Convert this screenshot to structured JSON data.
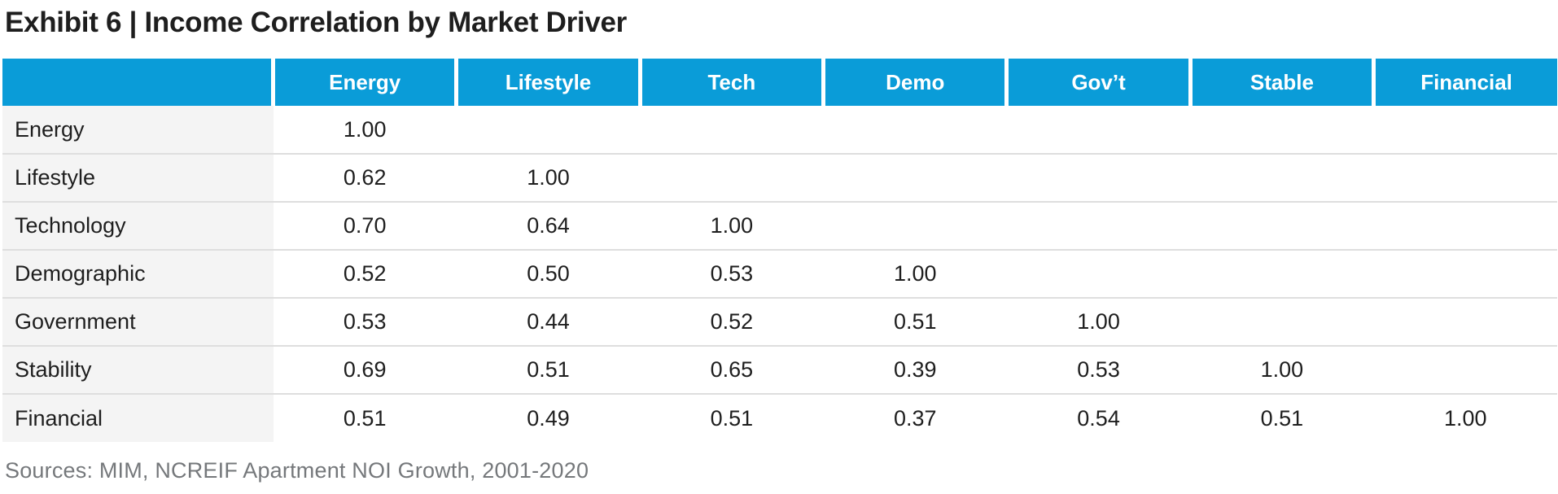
{
  "title": "Exhibit 6 | Income Correlation by Market Driver",
  "source_note": "Sources: MIM, NCREIF Apartment NOI Growth, 2001-2020",
  "colors": {
    "header_bg": "#0a9cd8",
    "header_text": "#ffffff",
    "row_label_bg": "#f4f4f4",
    "row_divider": "#dedede",
    "body_text": "#1e1e1e",
    "source_text": "#75787b"
  },
  "chart_data": {
    "type": "table",
    "subtype": "correlation-matrix",
    "title": "Exhibit 6 | Income Correlation by Market Driver",
    "column_headers": [
      "",
      "Energy",
      "Lifestyle",
      "Tech",
      "Demo",
      "Gov’t",
      "Stable",
      "Financial"
    ],
    "rows": [
      {
        "label": "Energy",
        "values": [
          "1.00",
          "",
          "",
          "",
          "",
          "",
          ""
        ]
      },
      {
        "label": "Lifestyle",
        "values": [
          "0.62",
          "1.00",
          "",
          "",
          "",
          "",
          ""
        ]
      },
      {
        "label": "Technology",
        "values": [
          "0.70",
          "0.64",
          "1.00",
          "",
          "",
          "",
          ""
        ]
      },
      {
        "label": "Demographic",
        "values": [
          "0.52",
          "0.50",
          "0.53",
          "1.00",
          "",
          "",
          ""
        ]
      },
      {
        "label": "Government",
        "values": [
          "0.53",
          "0.44",
          "0.52",
          "0.51",
          "1.00",
          "",
          ""
        ]
      },
      {
        "label": "Stability",
        "values": [
          "0.69",
          "0.51",
          "0.65",
          "0.39",
          "0.53",
          "1.00",
          ""
        ]
      },
      {
        "label": "Financial",
        "values": [
          "0.51",
          "0.49",
          "0.51",
          "0.37",
          "0.54",
          "0.51",
          "1.00"
        ]
      }
    ]
  }
}
